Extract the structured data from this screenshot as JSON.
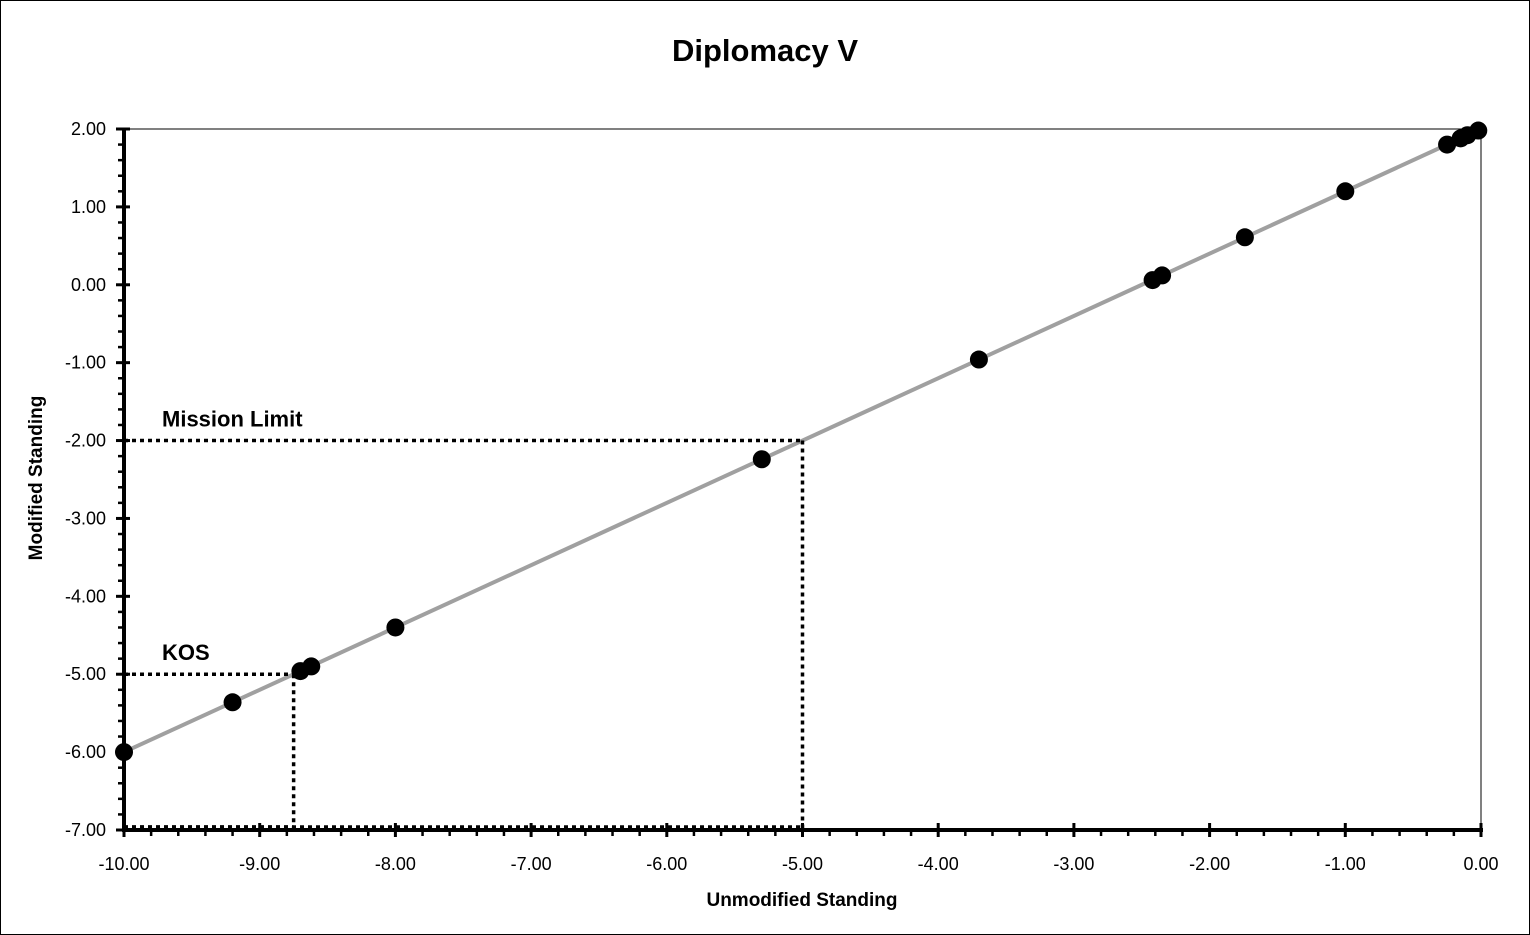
{
  "chart_data": {
    "type": "scatter",
    "title": "Diplomacy V",
    "xlabel": "Unmodified Standing",
    "ylabel": "Modified Standing",
    "xlim": [
      -10,
      0
    ],
    "ylim": [
      -7,
      2
    ],
    "x_ticks": [
      "-10.00",
      "-9.00",
      "-8.00",
      "-7.00",
      "-6.00",
      "-5.00",
      "-4.00",
      "-3.00",
      "-2.00",
      "-1.00",
      "0.00"
    ],
    "y_ticks": [
      "2.00",
      "1.00",
      "0.00",
      "-1.00",
      "-2.00",
      "-3.00",
      "-4.00",
      "-5.00",
      "-6.00",
      "-7.00"
    ],
    "grid": false,
    "legend": "none",
    "trend_line": {
      "from": [
        -10,
        -6
      ],
      "to": [
        0,
        2
      ],
      "color": "#a0a0a0"
    },
    "points": [
      {
        "x": -10.0,
        "y": -6.0
      },
      {
        "x": -9.2,
        "y": -5.36
      },
      {
        "x": -8.7,
        "y": -4.96
      },
      {
        "x": -8.62,
        "y": -4.9
      },
      {
        "x": -8.0,
        "y": -4.4
      },
      {
        "x": -5.3,
        "y": -2.24
      },
      {
        "x": -3.7,
        "y": -0.96
      },
      {
        "x": -2.42,
        "y": 0.06
      },
      {
        "x": -2.35,
        "y": 0.12
      },
      {
        "x": -1.74,
        "y": 0.61
      },
      {
        "x": -1.0,
        "y": 1.2
      },
      {
        "x": -0.25,
        "y": 1.8
      },
      {
        "x": -0.15,
        "y": 1.88
      },
      {
        "x": -0.1,
        "y": 1.92
      },
      {
        "x": -0.02,
        "y": 1.98
      }
    ],
    "annotations": [
      {
        "label": "Mission Limit",
        "x": -5.0,
        "y": -2.0
      },
      {
        "label": "KOS",
        "x": -8.75,
        "y": -5.0
      }
    ]
  }
}
